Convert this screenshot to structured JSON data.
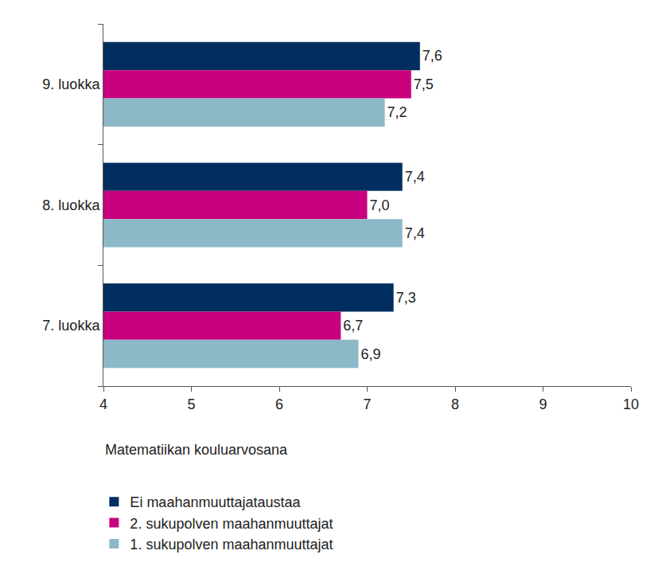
{
  "chart_data": {
    "type": "bar",
    "orientation": "horizontal",
    "xlabel": "Matematiikan kouluarvosana",
    "categories": [
      "9. luokka",
      "8. luokka",
      "7. luokka"
    ],
    "series": [
      {
        "name": "Ei maahanmuuttajataustaa",
        "color": "#002f5f",
        "values": [
          7.6,
          7.4,
          7.3
        ],
        "value_labels": [
          "7,6",
          "7,4",
          "7,3"
        ]
      },
      {
        "name": "2. sukupolven maahanmuuttajat",
        "color": "#c8007e",
        "values": [
          7.5,
          7.0,
          6.7
        ],
        "value_labels": [
          "7,5",
          "7,0",
          "6,7"
        ]
      },
      {
        "name": "1. sukupolven maahanmuuttajat",
        "color": "#8db8c7",
        "values": [
          7.2,
          7.4,
          6.9
        ],
        "value_labels": [
          "7,2",
          "7,4",
          "6,9"
        ]
      }
    ],
    "xlim": [
      4,
      10
    ],
    "xticks": [
      4,
      5,
      6,
      7,
      8,
      9,
      10
    ],
    "grid": false,
    "data_labels": true,
    "legend": "bottom left"
  }
}
